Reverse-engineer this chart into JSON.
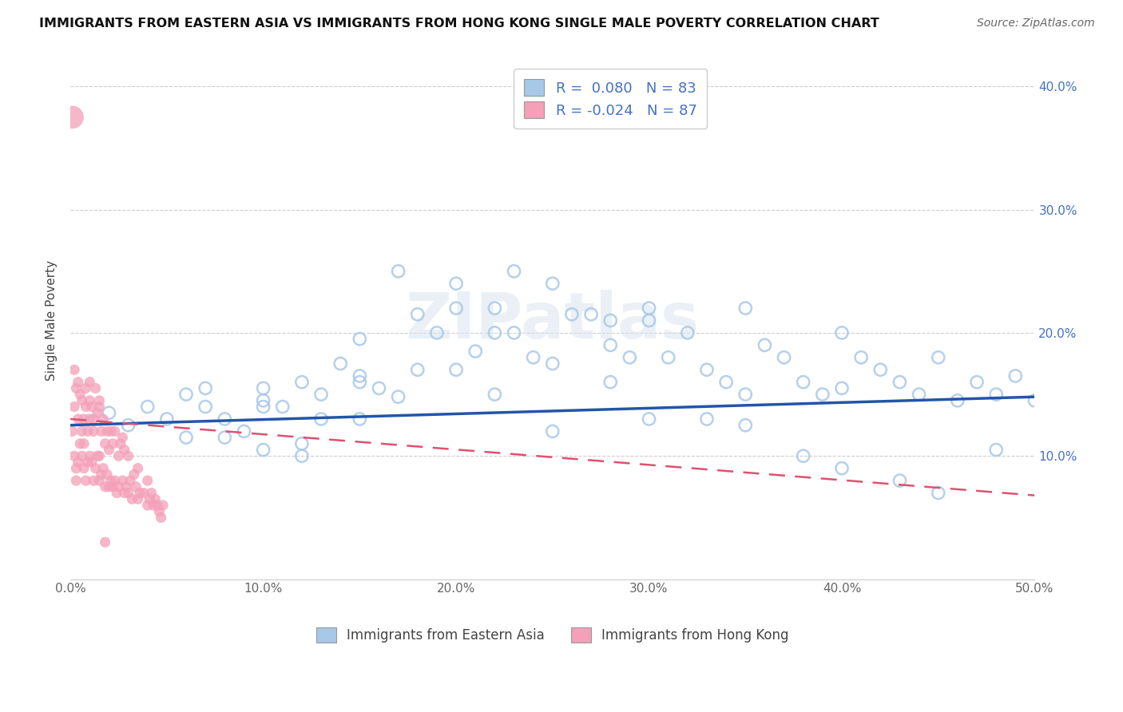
{
  "title": "IMMIGRANTS FROM EASTERN ASIA VS IMMIGRANTS FROM HONG KONG SINGLE MALE POVERTY CORRELATION CHART",
  "source": "Source: ZipAtlas.com",
  "ylabel": "Single Male Poverty",
  "xlim": [
    0.0,
    0.5
  ],
  "ylim": [
    0.0,
    0.42
  ],
  "xtick_labels": [
    "0.0%",
    "10.0%",
    "20.0%",
    "30.0%",
    "40.0%",
    "50.0%"
  ],
  "xtick_vals": [
    0.0,
    0.1,
    0.2,
    0.3,
    0.4,
    0.5
  ],
  "ytick_labels": [
    "10.0%",
    "20.0%",
    "30.0%",
    "40.0%"
  ],
  "ytick_vals": [
    0.1,
    0.2,
    0.3,
    0.4
  ],
  "watermark": "ZIPatlas",
  "legend_r1": "R =  0.080   N = 83",
  "legend_r2": "R = -0.024   N = 87",
  "color_eastern_asia": "#a8c8e8",
  "color_hong_kong": "#f4a0b8",
  "line_color_eastern_asia": "#2255aa",
  "line_color_hong_kong": "#e05070",
  "ea_trend_x0": 0.0,
  "ea_trend_y0": 0.125,
  "ea_trend_x1": 0.5,
  "ea_trend_y1": 0.148,
  "hk_trend_x0": 0.0,
  "hk_trend_y0": 0.13,
  "hk_trend_x1": 0.5,
  "hk_trend_y1": 0.068,
  "scatter_ea_x": [
    0.02,
    0.03,
    0.04,
    0.05,
    0.06,
    0.07,
    0.07,
    0.08,
    0.09,
    0.1,
    0.1,
    0.11,
    0.12,
    0.13,
    0.14,
    0.15,
    0.15,
    0.16,
    0.17,
    0.18,
    0.19,
    0.2,
    0.2,
    0.21,
    0.22,
    0.22,
    0.23,
    0.24,
    0.25,
    0.26,
    0.27,
    0.28,
    0.28,
    0.29,
    0.3,
    0.31,
    0.32,
    0.33,
    0.34,
    0.35,
    0.36,
    0.37,
    0.38,
    0.39,
    0.4,
    0.41,
    0.42,
    0.43,
    0.44,
    0.45,
    0.46,
    0.47,
    0.48,
    0.49,
    0.5,
    0.1,
    0.12,
    0.13,
    0.15,
    0.17,
    0.2,
    0.23,
    0.25,
    0.28,
    0.3,
    0.33,
    0.35,
    0.38,
    0.4,
    0.43,
    0.45,
    0.48,
    0.06,
    0.08,
    0.1,
    0.12,
    0.15,
    0.18,
    0.22,
    0.25,
    0.3,
    0.35,
    0.4
  ],
  "scatter_ea_y": [
    0.135,
    0.125,
    0.14,
    0.13,
    0.15,
    0.14,
    0.155,
    0.13,
    0.12,
    0.145,
    0.155,
    0.14,
    0.16,
    0.15,
    0.175,
    0.165,
    0.16,
    0.155,
    0.148,
    0.215,
    0.2,
    0.24,
    0.22,
    0.185,
    0.2,
    0.22,
    0.25,
    0.18,
    0.175,
    0.215,
    0.215,
    0.16,
    0.19,
    0.18,
    0.22,
    0.18,
    0.2,
    0.17,
    0.16,
    0.22,
    0.19,
    0.18,
    0.16,
    0.15,
    0.2,
    0.18,
    0.17,
    0.16,
    0.15,
    0.18,
    0.145,
    0.16,
    0.15,
    0.165,
    0.145,
    0.14,
    0.11,
    0.13,
    0.195,
    0.25,
    0.17,
    0.2,
    0.24,
    0.21,
    0.21,
    0.13,
    0.125,
    0.1,
    0.09,
    0.08,
    0.07,
    0.105,
    0.115,
    0.115,
    0.105,
    0.1,
    0.13,
    0.17,
    0.15,
    0.12,
    0.13,
    0.15,
    0.155
  ],
  "scatter_hk_x": [
    0.001,
    0.001,
    0.002,
    0.002,
    0.003,
    0.003,
    0.003,
    0.004,
    0.004,
    0.005,
    0.005,
    0.006,
    0.006,
    0.007,
    0.007,
    0.007,
    0.008,
    0.008,
    0.009,
    0.009,
    0.01,
    0.01,
    0.01,
    0.011,
    0.011,
    0.012,
    0.012,
    0.013,
    0.013,
    0.014,
    0.014,
    0.015,
    0.015,
    0.015,
    0.016,
    0.016,
    0.017,
    0.017,
    0.018,
    0.018,
    0.019,
    0.019,
    0.02,
    0.02,
    0.021,
    0.021,
    0.022,
    0.022,
    0.023,
    0.023,
    0.024,
    0.025,
    0.025,
    0.026,
    0.027,
    0.027,
    0.028,
    0.028,
    0.029,
    0.03,
    0.03,
    0.031,
    0.032,
    0.033,
    0.034,
    0.035,
    0.035,
    0.036,
    0.038,
    0.04,
    0.04,
    0.041,
    0.042,
    0.043,
    0.044,
    0.045,
    0.046,
    0.047,
    0.048,
    0.002,
    0.004,
    0.006,
    0.008,
    0.01,
    0.012,
    0.015,
    0.018
  ],
  "scatter_hk_y": [
    0.375,
    0.12,
    0.1,
    0.14,
    0.08,
    0.09,
    0.155,
    0.13,
    0.095,
    0.11,
    0.15,
    0.1,
    0.12,
    0.09,
    0.11,
    0.13,
    0.08,
    0.14,
    0.095,
    0.12,
    0.1,
    0.13,
    0.16,
    0.095,
    0.14,
    0.08,
    0.12,
    0.09,
    0.155,
    0.1,
    0.135,
    0.08,
    0.1,
    0.145,
    0.085,
    0.12,
    0.09,
    0.13,
    0.075,
    0.11,
    0.085,
    0.12,
    0.075,
    0.105,
    0.08,
    0.12,
    0.075,
    0.11,
    0.08,
    0.12,
    0.07,
    0.1,
    0.075,
    0.11,
    0.08,
    0.115,
    0.07,
    0.105,
    0.075,
    0.07,
    0.1,
    0.08,
    0.065,
    0.085,
    0.075,
    0.065,
    0.09,
    0.07,
    0.07,
    0.06,
    0.08,
    0.065,
    0.07,
    0.06,
    0.065,
    0.06,
    0.055,
    0.05,
    0.06,
    0.17,
    0.16,
    0.145,
    0.155,
    0.145,
    0.13,
    0.14,
    0.03
  ],
  "scatter_hk_sizes_big": [
    0
  ],
  "background_color": "#ffffff",
  "grid_color": "#c8c8c8",
  "legend1_label": "R =  0.080   N = 83",
  "legend2_label": "R = -0.024   N = 87",
  "bottom_label1": "Immigrants from Eastern Asia",
  "bottom_label2": "Immigrants from Hong Kong"
}
